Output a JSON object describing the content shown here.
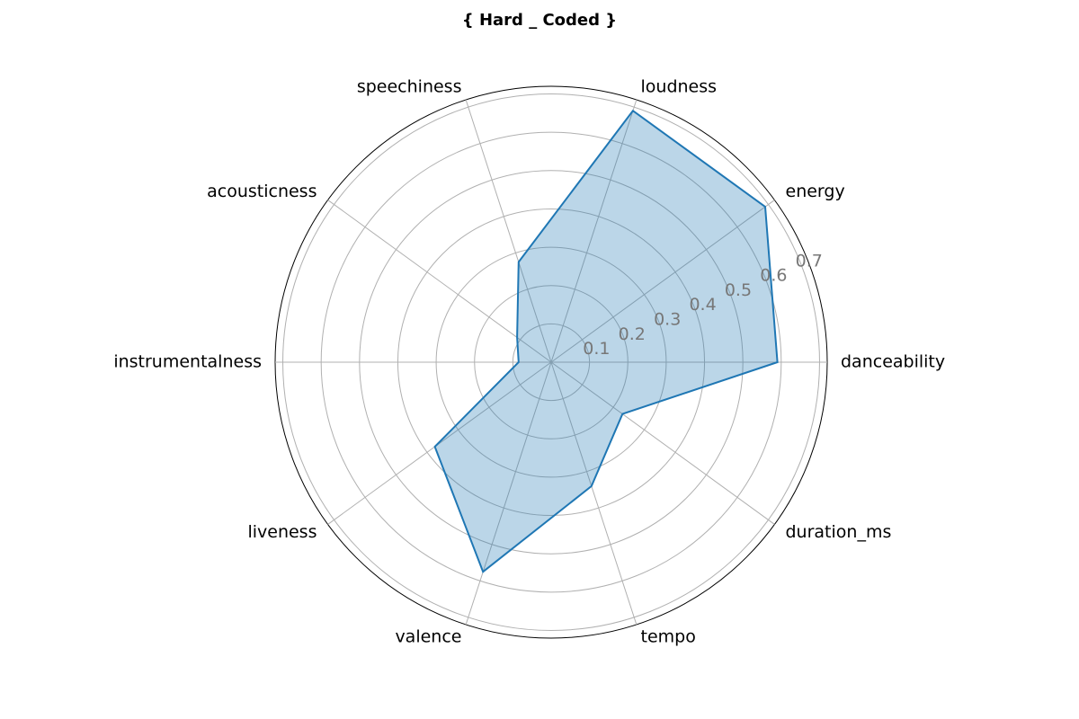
{
  "chart_data": {
    "type": "radar",
    "title": "{ Hard _ Coded }",
    "categories": [
      "danceability",
      "energy",
      "loudness",
      "speechiness",
      "acousticness",
      "instrumentalness",
      "liveness",
      "valence",
      "tempo",
      "duration_ms"
    ],
    "values": [
      0.59,
      0.69,
      0.69,
      0.275,
      0.11,
      0.085,
      0.375,
      0.575,
      0.34,
      0.23
    ],
    "rlim": [
      0,
      0.72
    ],
    "ticks": [
      0.1,
      0.2,
      0.3,
      0.4,
      0.5,
      0.6,
      0.7
    ],
    "tick_labels": [
      "0.1",
      "0.2",
      "0.3",
      "0.4",
      "0.5",
      "0.6",
      "0.7"
    ],
    "grid": true,
    "colors": {
      "line": "#1f77b4",
      "fill": "#1f77b4",
      "grid": "#b0b0b0",
      "frame": "#000000",
      "tick_text": "#777777"
    }
  }
}
